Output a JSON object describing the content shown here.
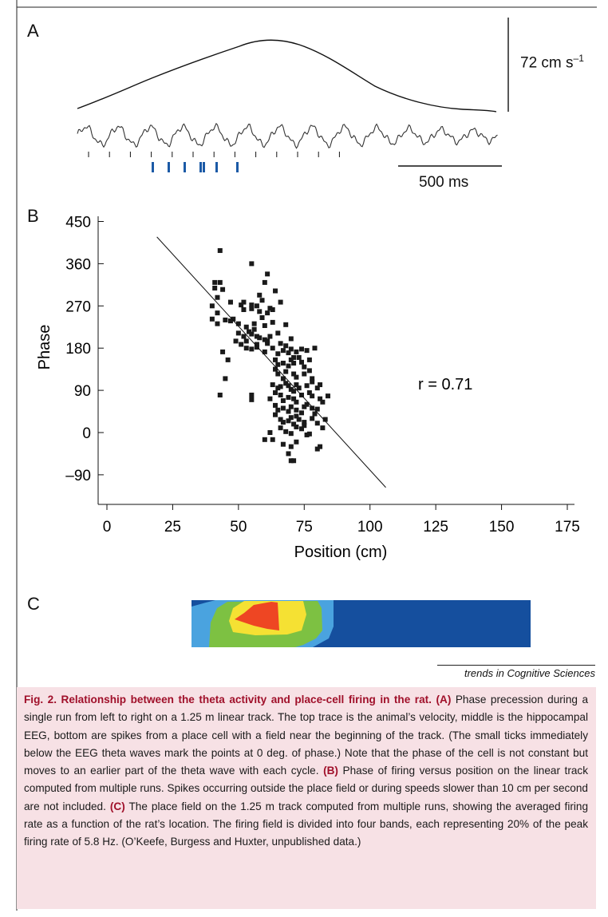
{
  "panels": {
    "a_label": "A",
    "b_label": "B",
    "c_label": "C"
  },
  "panel_a": {
    "velocity_scale": "72 cm s",
    "velocity_scale_exp": "–1",
    "time_scale": "500 ms",
    "spike_count": 8,
    "phase_tick_count": 13
  },
  "chart_data": {
    "type": "scatter",
    "xlabel": "Position (cm)",
    "ylabel": "Phase",
    "xlim": [
      0,
      175
    ],
    "ylim": [
      -120,
      450
    ],
    "xticks": [
      0,
      25,
      50,
      75,
      100,
      125,
      150,
      175
    ],
    "yticks": [
      -90,
      0,
      90,
      180,
      270,
      360,
      450
    ],
    "annotation": "r = 0.71",
    "fit_line": {
      "x": [
        19,
        106
      ],
      "y": [
        417,
        -117
      ]
    },
    "points": [
      [
        43,
        388
      ],
      [
        55,
        360
      ],
      [
        61,
        338
      ],
      [
        41,
        320
      ],
      [
        43,
        320
      ],
      [
        41,
        308
      ],
      [
        44,
        305
      ],
      [
        60,
        320
      ],
      [
        58,
        293
      ],
      [
        64,
        302
      ],
      [
        42,
        288
      ],
      [
        47,
        278
      ],
      [
        52,
        278
      ],
      [
        55,
        272
      ],
      [
        55,
        264
      ],
      [
        57,
        270
      ],
      [
        66,
        278
      ],
      [
        63,
        262
      ],
      [
        61,
        255
      ],
      [
        40,
        270
      ],
      [
        42,
        255
      ],
      [
        40,
        242
      ],
      [
        45,
        240
      ],
      [
        42,
        232
      ],
      [
        47,
        238
      ],
      [
        52,
        262
      ],
      [
        58,
        258
      ],
      [
        59,
        245
      ],
      [
        50,
        232
      ],
      [
        53,
        225
      ],
      [
        56,
        232
      ],
      [
        60,
        228
      ],
      [
        63,
        235
      ],
      [
        65,
        212
      ],
      [
        68,
        230
      ],
      [
        70,
        200
      ],
      [
        50,
        212
      ],
      [
        52,
        205
      ],
      [
        55,
        210
      ],
      [
        57,
        205
      ],
      [
        53,
        195
      ],
      [
        57,
        188
      ],
      [
        60,
        198
      ],
      [
        61,
        195
      ],
      [
        62,
        205
      ],
      [
        49,
        195
      ],
      [
        51,
        188
      ],
      [
        53,
        180
      ],
      [
        55,
        178
      ],
      [
        57,
        182
      ],
      [
        60,
        172
      ],
      [
        63,
        180
      ],
      [
        65,
        168
      ],
      [
        67,
        175
      ],
      [
        69,
        170
      ],
      [
        70,
        178
      ],
      [
        72,
        172
      ],
      [
        74,
        178
      ],
      [
        76,
        175
      ],
      [
        79,
        180
      ],
      [
        44,
        172
      ],
      [
        46,
        155
      ],
      [
        64,
        155
      ],
      [
        65,
        145
      ],
      [
        67,
        148
      ],
      [
        69,
        142
      ],
      [
        70,
        155
      ],
      [
        71,
        148
      ],
      [
        74,
        150
      ],
      [
        77,
        155
      ],
      [
        64,
        135
      ],
      [
        65,
        125
      ],
      [
        67,
        115
      ],
      [
        68,
        130
      ],
      [
        71,
        125
      ],
      [
        72,
        118
      ],
      [
        75,
        125
      ],
      [
        77,
        132
      ],
      [
        78,
        115
      ],
      [
        63,
        102
      ],
      [
        66,
        98
      ],
      [
        69,
        100
      ],
      [
        70,
        92
      ],
      [
        71,
        88
      ],
      [
        72,
        102
      ],
      [
        73,
        95
      ],
      [
        76,
        100
      ],
      [
        78,
        108
      ],
      [
        80,
        95
      ],
      [
        81,
        102
      ],
      [
        45,
        115
      ],
      [
        43,
        80
      ],
      [
        55,
        80
      ],
      [
        55,
        70
      ],
      [
        62,
        72
      ],
      [
        64,
        85
      ],
      [
        66,
        80
      ],
      [
        67,
        68
      ],
      [
        69,
        75
      ],
      [
        71,
        72
      ],
      [
        72,
        65
      ],
      [
        74,
        80
      ],
      [
        77,
        85
      ],
      [
        78,
        78
      ],
      [
        81,
        72
      ],
      [
        82,
        65
      ],
      [
        84,
        78
      ],
      [
        64,
        58
      ],
      [
        65,
        48
      ],
      [
        67,
        52
      ],
      [
        69,
        45
      ],
      [
        70,
        55
      ],
      [
        72,
        48
      ],
      [
        74,
        42
      ],
      [
        75,
        55
      ],
      [
        79,
        40
      ],
      [
        80,
        50
      ],
      [
        64,
        38
      ],
      [
        66,
        28
      ],
      [
        67,
        22
      ],
      [
        69,
        25
      ],
      [
        70,
        32
      ],
      [
        71,
        18
      ],
      [
        72,
        35
      ],
      [
        73,
        28
      ],
      [
        75,
        22
      ],
      [
        78,
        30
      ],
      [
        80,
        20
      ],
      [
        83,
        28
      ],
      [
        82,
        10
      ],
      [
        66,
        10
      ],
      [
        68,
        2
      ],
      [
        70,
        -2
      ],
      [
        72,
        12
      ],
      [
        74,
        8
      ],
      [
        76,
        -5
      ],
      [
        62,
        0
      ],
      [
        63,
        -15
      ],
      [
        67,
        -25
      ],
      [
        70,
        -30
      ],
      [
        72,
        -20
      ],
      [
        69,
        -45
      ],
      [
        70,
        -60
      ],
      [
        71,
        -60
      ],
      [
        80,
        -35
      ],
      [
        81,
        -30
      ],
      [
        60,
        -15
      ],
      [
        75,
        15
      ],
      [
        77,
        -3
      ],
      [
        78,
        52
      ],
      [
        56,
        220
      ],
      [
        54,
        215
      ],
      [
        58,
        202
      ],
      [
        61,
        190
      ],
      [
        48,
        242
      ],
      [
        51,
        272
      ],
      [
        59,
        282
      ],
      [
        62,
        265
      ],
      [
        66,
        190
      ],
      [
        68,
        185
      ],
      [
        73,
        160
      ],
      [
        75,
        140
      ],
      [
        71,
        160
      ],
      [
        76,
        60
      ],
      [
        65,
        95
      ],
      [
        68,
        105
      ]
    ]
  },
  "place_field": {
    "bands": [
      {
        "name": "outer",
        "color": "#4aa3df"
      },
      {
        "name": "20-40%",
        "color": "#7dc142"
      },
      {
        "name": "40-60%",
        "color": "#f5e133"
      },
      {
        "name": "peak",
        "color": "#ee4623"
      }
    ],
    "background": "#154f9e"
  },
  "source_line": "trends in Cognitive Sciences",
  "caption": {
    "title": "Fig. 2. Relationship between the theta activity and place-cell firing in the rat.",
    "tag_a": "(A)",
    "text_a": "Phase precession during a single run from left to right on a 1.25 m linear track. The top trace is the animal’s velocity, middle is the hippocampal EEG, bottom are spikes from a place cell with a field near the beginning of the track. (The small ticks immediately below the EEG theta waves mark the points at 0 deg. of phase.) Note that the phase of the cell is not constant but moves to an earlier part of the theta wave with each cycle.",
    "tag_b": "(B)",
    "text_b": "Phase of firing versus position on the linear track computed from multiple runs. Spikes occurring outside the place field or during speeds slower than 10 cm per second are not included.",
    "tag_c": "(C)",
    "text_c": "The place field on the 1.25 m track computed from multiple runs, showing the averaged firing rate as a function of the rat’s location. The firing field is divided into four bands, each representing 20% of the peak firing rate of 5.8 Hz. (O’Keefe, Burgess and Huxter, unpublished data.)"
  }
}
